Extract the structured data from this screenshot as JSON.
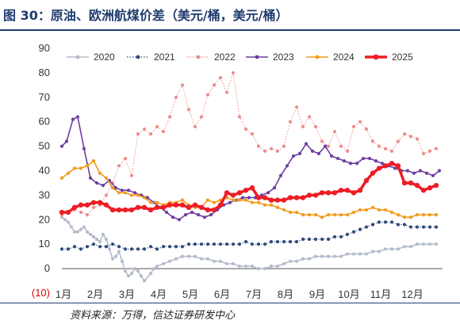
{
  "title": "图 30：原油、欧洲航煤价差（美元/桶，美元/桶）",
  "source": "资料来源：万得，信达证券研发中心",
  "chart_data": {
    "type": "line",
    "categories": [
      "1月",
      "2月",
      "3月",
      "4月",
      "5月",
      "6月",
      "7月",
      "8月",
      "9月",
      "10月",
      "11月",
      "12月"
    ],
    "ylim": [
      -10,
      90
    ],
    "yticks": [
      "(10)",
      "0",
      "10",
      "20",
      "30",
      "40",
      "50",
      "60",
      "70",
      "80",
      "90"
    ],
    "grid": false,
    "legend_position": "top",
    "series": [
      {
        "name": "2020",
        "color": "#b4bccb",
        "style": "solid-dot",
        "x": [
          0.0,
          0.1,
          0.2,
          0.3,
          0.4,
          0.5,
          0.6,
          0.7,
          0.8,
          0.9,
          1.0,
          1.1,
          1.2,
          1.3,
          1.4,
          1.5,
          1.6,
          1.7,
          1.8,
          1.9,
          2.0,
          2.1,
          2.2,
          2.3,
          2.4,
          2.5,
          2.6,
          2.8,
          2.9,
          3.0,
          3.2,
          3.4,
          3.6,
          3.8,
          4.0,
          4.2,
          4.4,
          4.6,
          4.8,
          5.0,
          5.2,
          5.4,
          5.6,
          5.8,
          6.0,
          6.2,
          6.4,
          6.6,
          6.8,
          7.0,
          7.2,
          7.4,
          7.6,
          7.8,
          8.0,
          8.2,
          8.4,
          8.6,
          8.8,
          9.0,
          9.2,
          9.4,
          9.6,
          9.8,
          10.0,
          10.2,
          10.4,
          10.6,
          10.8,
          11.0,
          11.2,
          11.4,
          11.6,
          11.8
        ],
        "values": [
          21,
          20,
          19,
          17,
          15,
          15,
          16,
          17,
          15,
          14,
          13,
          12,
          11,
          14,
          12,
          8,
          4,
          5,
          7,
          3,
          -1,
          -3,
          -2,
          0,
          -1,
          -3,
          -5,
          -2,
          0,
          1,
          2,
          3,
          4,
          5,
          5,
          5,
          4,
          4,
          3,
          3,
          2,
          2,
          1,
          1,
          1,
          0,
          0,
          1,
          1,
          2,
          3,
          3,
          4,
          4,
          5,
          5,
          5,
          5,
          5,
          6,
          6,
          6,
          6,
          7,
          7,
          8,
          8,
          8,
          9,
          9,
          10,
          10,
          10,
          10
        ]
      },
      {
        "name": "2021",
        "color": "#2f4a7a",
        "style": "dotted-dot",
        "x": [
          0.0,
          0.2,
          0.4,
          0.6,
          0.8,
          1.0,
          1.2,
          1.4,
          1.6,
          1.8,
          2.0,
          2.2,
          2.4,
          2.6,
          2.8,
          3.0,
          3.2,
          3.4,
          3.6,
          3.8,
          4.0,
          4.2,
          4.4,
          4.6,
          4.8,
          5.0,
          5.2,
          5.4,
          5.6,
          5.8,
          6.0,
          6.2,
          6.4,
          6.6,
          6.8,
          7.0,
          7.2,
          7.4,
          7.6,
          7.8,
          8.0,
          8.2,
          8.4,
          8.6,
          8.8,
          9.0,
          9.2,
          9.4,
          9.6,
          9.8,
          10.0,
          10.2,
          10.4,
          10.6,
          10.8,
          11.0,
          11.2,
          11.4,
          11.6,
          11.8
        ],
        "values": [
          8,
          8,
          9,
          8,
          9,
          10,
          9,
          9,
          10,
          9,
          8,
          8,
          8,
          8,
          9,
          8,
          9,
          9,
          9,
          9,
          10,
          10,
          10,
          10,
          10,
          10,
          10,
          10,
          10,
          11,
          10,
          10,
          10,
          11,
          11,
          11,
          11,
          11,
          12,
          12,
          12,
          12,
          12,
          13,
          13,
          14,
          15,
          16,
          17,
          18,
          19,
          19,
          19,
          18,
          18,
          17,
          17,
          17,
          17,
          17
        ]
      },
      {
        "name": "2022",
        "color": "#f08a8a",
        "style": "dotted-dot",
        "x": [
          0.0,
          0.2,
          0.4,
          0.6,
          0.8,
          1.0,
          1.2,
          1.4,
          1.6,
          1.8,
          2.0,
          2.2,
          2.4,
          2.6,
          2.8,
          3.0,
          3.2,
          3.4,
          3.6,
          3.8,
          4.0,
          4.2,
          4.4,
          4.6,
          4.8,
          5.0,
          5.2,
          5.4,
          5.6,
          5.8,
          6.0,
          6.2,
          6.4,
          6.6,
          6.8,
          7.0,
          7.2,
          7.4,
          7.6,
          7.8,
          8.0,
          8.2,
          8.4,
          8.6,
          8.8,
          9.0,
          9.2,
          9.4,
          9.6,
          9.8,
          10.0,
          10.2,
          10.4,
          10.6,
          10.8,
          11.0,
          11.2,
          11.4,
          11.6,
          11.8
        ],
        "values": [
          22,
          23,
          24,
          23,
          22,
          25,
          26,
          30,
          35,
          42,
          45,
          38,
          55,
          57,
          55,
          58,
          56,
          62,
          70,
          75,
          65,
          58,
          62,
          71,
          75,
          78,
          72,
          80,
          62,
          57,
          55,
          50,
          48,
          49,
          48,
          50,
          60,
          66,
          58,
          62,
          58,
          52,
          50,
          56,
          50,
          48,
          58,
          60,
          57,
          52,
          50,
          49,
          48,
          52,
          55,
          54,
          53,
          47,
          48,
          49
        ]
      },
      {
        "name": "2023",
        "color": "#6b3fa0",
        "style": "solid-dot",
        "x": [
          0.0,
          0.15,
          0.35,
          0.5,
          0.7,
          0.9,
          1.1,
          1.3,
          1.5,
          1.7,
          1.9,
          2.1,
          2.3,
          2.5,
          2.7,
          2.9,
          3.1,
          3.3,
          3.5,
          3.7,
          3.9,
          4.1,
          4.3,
          4.5,
          4.7,
          4.9,
          5.1,
          5.3,
          5.5,
          5.7,
          5.9,
          6.1,
          6.3,
          6.5,
          6.7,
          6.9,
          7.1,
          7.3,
          7.5,
          7.7,
          7.9,
          8.1,
          8.3,
          8.5,
          8.7,
          8.9,
          9.1,
          9.3,
          9.5,
          9.7,
          9.9,
          10.1,
          10.3,
          10.5,
          10.7,
          10.9,
          11.1,
          11.3,
          11.5,
          11.7,
          11.9
        ],
        "values": [
          50,
          52,
          61,
          62,
          49,
          37,
          35,
          34,
          36,
          33,
          32,
          32,
          31,
          30,
          29,
          27,
          25,
          23,
          21,
          20,
          22,
          23,
          22,
          21,
          22,
          24,
          26,
          27,
          28,
          29,
          29,
          29,
          30,
          31,
          33,
          38,
          42,
          46,
          47,
          51,
          48,
          47,
          50,
          46,
          45,
          44,
          43,
          43,
          45,
          45,
          44,
          43,
          42,
          41,
          40,
          40,
          39,
          40,
          39,
          38,
          40
        ]
      },
      {
        "name": "2024",
        "color": "#f29a1a",
        "style": "solid-dot",
        "x": [
          0.0,
          0.2,
          0.4,
          0.6,
          0.8,
          1.0,
          1.2,
          1.4,
          1.6,
          1.8,
          2.0,
          2.2,
          2.4,
          2.6,
          2.8,
          3.0,
          3.2,
          3.4,
          3.6,
          3.8,
          4.0,
          4.2,
          4.4,
          4.6,
          4.8,
          5.0,
          5.2,
          5.4,
          5.6,
          5.8,
          6.0,
          6.2,
          6.4,
          6.6,
          6.8,
          7.0,
          7.2,
          7.4,
          7.6,
          7.8,
          8.0,
          8.2,
          8.4,
          8.6,
          8.8,
          9.0,
          9.2,
          9.4,
          9.6,
          9.8,
          10.0,
          10.2,
          10.4,
          10.6,
          10.8,
          11.0,
          11.2,
          11.4,
          11.6,
          11.8
        ],
        "values": [
          37,
          39,
          41,
          41,
          42,
          44,
          39,
          37,
          33,
          31,
          31,
          30,
          30,
          29,
          27,
          27,
          26,
          27,
          27,
          28,
          26,
          25,
          25,
          28,
          27,
          28,
          29,
          28,
          28,
          28,
          27,
          27,
          26,
          26,
          25,
          24,
          23,
          23,
          22,
          22,
          22,
          21,
          22,
          22,
          22,
          22,
          23,
          24,
          24,
          25,
          24,
          24,
          23,
          22,
          21,
          21,
          22,
          22,
          22,
          22
        ]
      },
      {
        "name": "2025",
        "color": "#ee1c25",
        "style": "thick",
        "x": [
          0.0,
          0.2,
          0.4,
          0.6,
          0.8,
          1.0,
          1.2,
          1.4,
          1.6,
          1.8,
          2.0,
          2.2,
          2.4,
          2.6,
          2.8,
          3.0,
          3.2,
          3.4,
          3.6,
          3.8,
          4.0,
          4.2,
          4.4,
          4.6,
          4.8,
          5.0,
          5.2,
          5.4,
          5.6,
          5.8,
          6.0,
          6.2,
          6.4,
          6.6,
          6.8,
          7.0,
          7.2,
          7.4,
          7.6,
          7.8,
          8.0,
          8.2,
          8.4,
          8.6,
          8.8,
          9.0,
          9.2,
          9.4,
          9.6,
          9.8,
          10.0,
          10.2,
          10.4,
          10.6,
          10.8,
          11.0,
          11.2,
          11.4,
          11.6,
          11.8
        ],
        "values": [
          23,
          23,
          25,
          26,
          26,
          27,
          27,
          26,
          24,
          24,
          24,
          24,
          25,
          25,
          24,
          25,
          25,
          26,
          26,
          26,
          25,
          26,
          25,
          24,
          24,
          26,
          31,
          30,
          31,
          32,
          33,
          29,
          29,
          28,
          28,
          28,
          29,
          29,
          29,
          30,
          30,
          31,
          31,
          31,
          32,
          32,
          31,
          32,
          36,
          39,
          41,
          42,
          43,
          42,
          35,
          35,
          34,
          32,
          33,
          34
        ]
      }
    ]
  }
}
